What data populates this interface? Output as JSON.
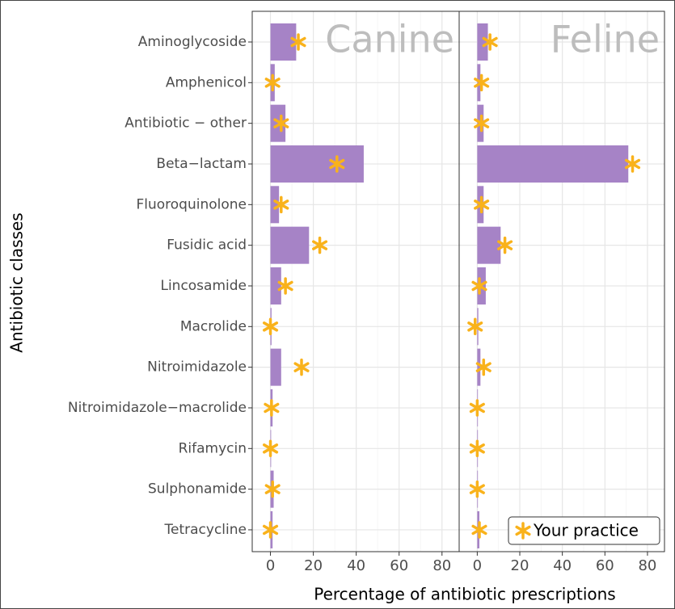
{
  "chart_data": {
    "type": "bar",
    "xlabel": "Percentage of antibiotic prescriptions",
    "ylabel": "Antibiotic classes",
    "categories": [
      "Aminoglycoside",
      "Amphenicol",
      "Antibiotic − other",
      "Beta−lactam",
      "Fluoroquinolone",
      "Fusidic acid",
      "Lincosamide",
      "Macrolide",
      "Nitroimidazole",
      "Nitroimidazole−macrolide",
      "Rifamycin",
      "Sulphonamide",
      "Tetracycline"
    ],
    "xlim": [
      -8.5,
      88
    ],
    "xticks": [
      0,
      20,
      40,
      60,
      80
    ],
    "grid": true,
    "bar_color": "#a683c6",
    "practice_color": "#f9b21b",
    "practice_label": "Your practice",
    "legend_position": "bottom-right",
    "facets": [
      {
        "title": "Canine",
        "values": [
          12,
          2,
          7,
          43.5,
          4,
          18,
          5,
          0.5,
          5,
          1,
          0.3,
          1.5,
          1
        ],
        "practice": [
          13,
          1,
          5,
          31,
          5,
          23,
          7,
          0,
          14.5,
          0.5,
          0,
          1,
          0
        ]
      },
      {
        "title": "Feline",
        "values": [
          5,
          1.5,
          3,
          71,
          3,
          11,
          4,
          0.5,
          1.5,
          0.3,
          0.3,
          0.3,
          1
        ],
        "practice": [
          6,
          2,
          2,
          73,
          2,
          13,
          1,
          -1,
          3,
          0,
          0,
          0,
          1
        ]
      }
    ]
  }
}
